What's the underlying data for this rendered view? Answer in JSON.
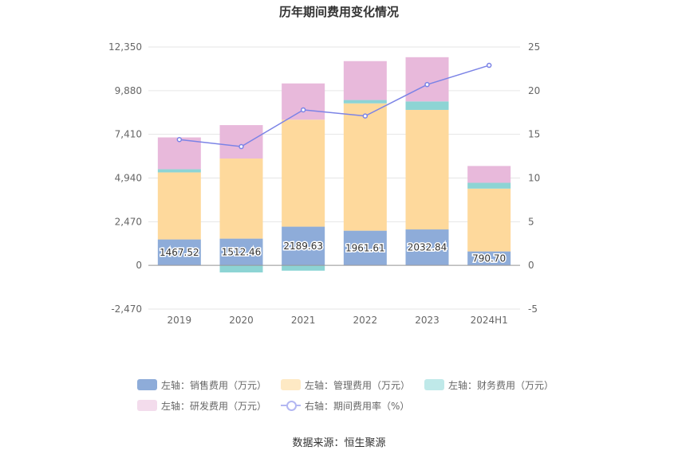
{
  "title": "历年期间费用变化情况",
  "source": "数据来源：恒生聚源",
  "colors": {
    "sales": "#8eacd9",
    "admin": "#fed99c",
    "finance": "#8dd4d4",
    "rd": "#e8b9db",
    "rate_line": "#7b83e6"
  },
  "chart_data": {
    "type": "bar",
    "stacked": true,
    "categories": [
      "2019",
      "2020",
      "2021",
      "2022",
      "2023",
      "2024H1"
    ],
    "series": [
      {
        "name": "左轴：销售费用（万元）",
        "key": "sales",
        "axis": "left",
        "values": [
          1467.52,
          1512.46,
          2189.63,
          1961.61,
          2032.84,
          790.7
        ],
        "labels": [
          "1467.52",
          "1512.46",
          "2189.63",
          "1961.61",
          "2032.84",
          "790.70"
        ]
      },
      {
        "name": "左轴：管理费用（万元）",
        "key": "admin",
        "axis": "left",
        "values": [
          3790,
          4530,
          6050,
          7200,
          6760,
          3550
        ]
      },
      {
        "name": "左轴：财务费用（万元）",
        "key": "finance",
        "axis": "left",
        "values": [
          180,
          -400,
          -300,
          190,
          480,
          330
        ]
      },
      {
        "name": "左轴：研发费用（万元）",
        "key": "rd",
        "axis": "left",
        "values": [
          1800,
          1890,
          2050,
          2200,
          2500,
          950
        ]
      },
      {
        "name": "右轴：期间费用率（%）",
        "key": "rate",
        "axis": "right",
        "type": "line",
        "values": [
          14.4,
          13.6,
          17.8,
          17.1,
          20.7,
          22.9
        ]
      }
    ],
    "y_left": {
      "min": -2470,
      "max": 12350,
      "ticks": [
        -2470,
        0,
        2470,
        4940,
        7410,
        9880,
        12350
      ],
      "tick_labels": [
        "-2,470",
        "0",
        "2,470",
        "4,940",
        "7,410",
        "9,880",
        "12,350"
      ]
    },
    "y_right": {
      "min": -5,
      "max": 25,
      "ticks": [
        -5,
        0,
        5,
        10,
        15,
        20,
        25
      ],
      "tick_labels": [
        "-5",
        "0",
        "5",
        "10",
        "15",
        "20",
        "25"
      ]
    },
    "grid": true,
    "legend_position": "bottom"
  },
  "legend": {
    "row1": [
      "左轴：销售费用（万元）",
      "左轴：管理费用（万元）",
      "左轴：财务费用（万元）"
    ],
    "row2": [
      "左轴：研发费用（万元）",
      "右轴：期间费用率（%）"
    ]
  }
}
